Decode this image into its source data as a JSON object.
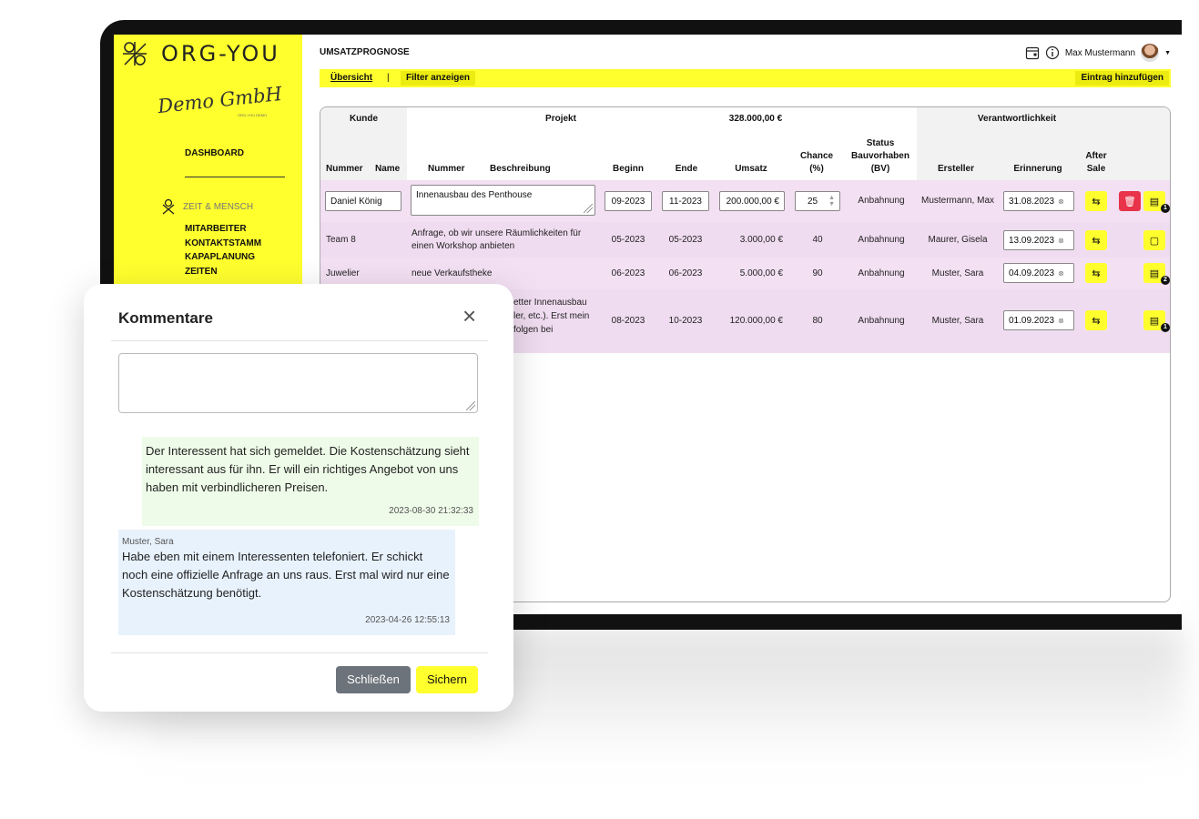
{
  "sidebar": {
    "logo": "ORG-YOU",
    "company": "Demo GmbH",
    "company_sub": "ORG-YOU DEMO",
    "dashboard": "DASHBOARD",
    "section": "ZEIT & MENSCH",
    "items": [
      "MITARBEITER",
      "KONTAKTSTAMM",
      "KAPAPLANUNG",
      "ZEITEN"
    ]
  },
  "header": {
    "title": "UMSATZPROGNOSE",
    "user": "Max Mustermann"
  },
  "toolbar": {
    "overview": "Übersicht",
    "separator": "|",
    "filter": "Filter anzeigen",
    "add": "Eintrag hinzufügen"
  },
  "table": {
    "groups": {
      "kunde": "Kunde",
      "projekt": "Projekt",
      "total": "328.000,00 €",
      "verantwortlichkeit": "Verantwortlichkeit"
    },
    "columns": {
      "nummer": "Nummer",
      "name": "Name",
      "p_nummer": "Nummer",
      "beschreibung": "Beschreibung",
      "beginn": "Beginn",
      "ende": "Ende",
      "umsatz": "Umsatz",
      "chance": "Chance (%)",
      "status": "Status Bauvorhaben (BV)",
      "ersteller": "Ersteller",
      "erinnerung": "Erinnerung",
      "after_sale": "After Sale"
    },
    "rows": [
      {
        "kunde": "Daniel König",
        "beschreibung": "Innenausbau des Penthouse",
        "beginn": "09-2023",
        "ende": "11-2023",
        "umsatz": "200.000,00 €",
        "chance": "25",
        "status": "Anbahnung",
        "ersteller": "Mustermann, Max",
        "erinnerung": "31.08.2023",
        "comments": "1"
      },
      {
        "kunde": "Team 8",
        "beschreibung": "Anfrage, ob wir unsere Räumlichkeiten für einen Workshop anbieten",
        "beginn": "05-2023",
        "ende": "05-2023",
        "umsatz": "3.000,00 €",
        "chance": "40",
        "status": "Anbahnung",
        "ersteller": "Maurer, Gisela",
        "erinnerung": "13.09.2023",
        "comments": ""
      },
      {
        "kunde": "Juwelier",
        "beschreibung": "neue Verkaufstheke",
        "beginn": "06-2023",
        "ende": "06-2023",
        "umsatz": "5.000,00 €",
        "chance": "90",
        "status": "Anbahnung",
        "ersteller": "Muster, Sara",
        "erinnerung": "04.09.2023",
        "comments": "2"
      },
      {
        "kunde": "",
        "beschreibung_l1": "etter Innenausbau",
        "beschreibung_l2": "ler, etc.). Erst mein",
        "beschreibung_l3": "folgen bei",
        "beginn": "08-2023",
        "ende": "10-2023",
        "umsatz": "120.000,00 €",
        "chance": "80",
        "status": "Anbahnung",
        "ersteller": "Muster, Sara",
        "erinnerung": "01.09.2023",
        "comments": "1"
      }
    ]
  },
  "modal": {
    "title": "Kommentare",
    "close": "×",
    "comments": [
      {
        "author": "",
        "text": "Der Interessent hat sich gemeldet. Die Kostenschätzung sieht interessant aus für ihn. Er will ein richtiges Angebot von uns haben mit verbindlicheren Preisen.",
        "time": "2023-08-30 21:32:33"
      },
      {
        "author": "Muster, Sara",
        "text": "Habe eben mit einem Interessenten telefoniert. Er schickt noch eine offizielle Anfrage an uns raus. Erst mal wird nur eine Kostenschätzung benötigt.",
        "time": "2023-04-26 12:55:13"
      }
    ],
    "cancel": "Schließen",
    "save": "Sichern"
  },
  "colors": {
    "accent": "#ffff2e",
    "row": "#f6e4f6",
    "danger": "#e8334b"
  }
}
